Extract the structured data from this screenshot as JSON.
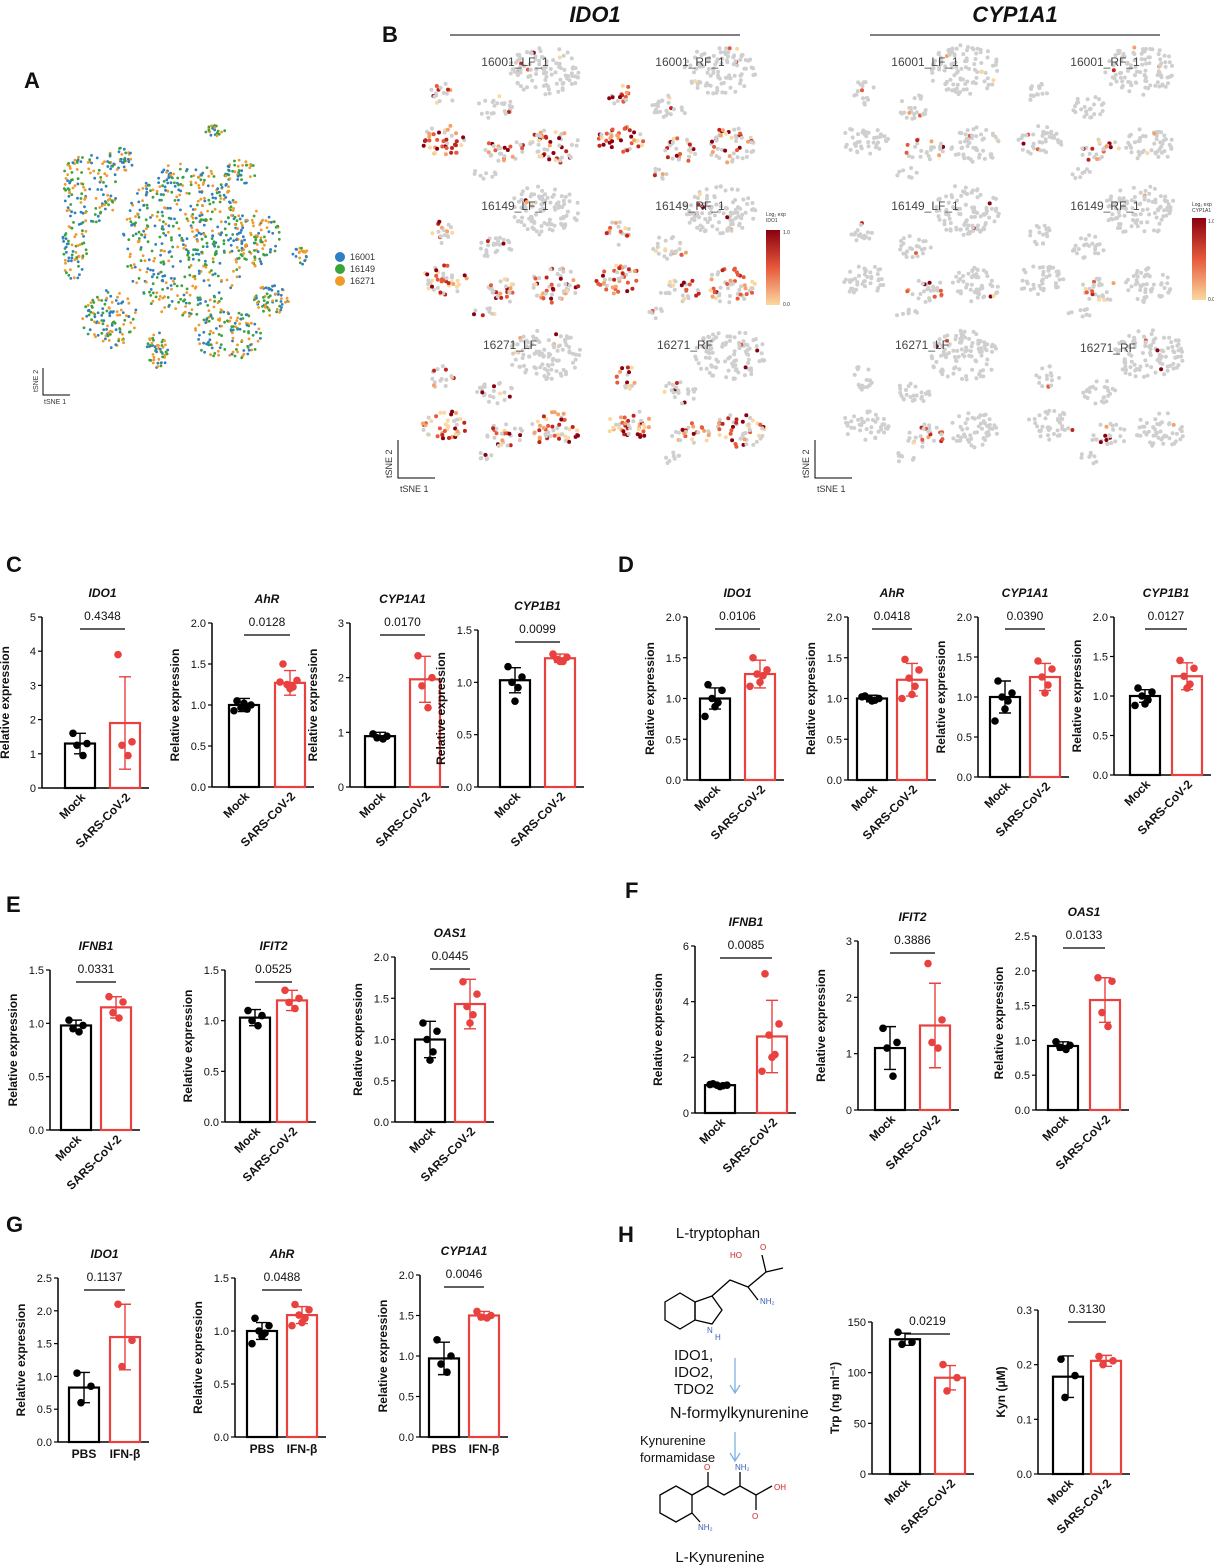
{
  "figure": {
    "letters": [
      "A",
      "B",
      "C",
      "D",
      "E",
      "F",
      "G",
      "H"
    ],
    "tsne": {
      "genes": [
        "IDO1",
        "CYP1A1"
      ],
      "samples": [
        "16001_LF_1",
        "16001_RF_1",
        "16149_LF_1",
        "16149_RF_1",
        "16271_LF",
        "16271_RF"
      ],
      "legend": [
        "16001",
        "16149",
        "16271"
      ],
      "legend_colors": [
        "#2f7fc1",
        "#3aa33a",
        "#f09a2a"
      ],
      "axis_x": "tSNE 1",
      "axis_y": "tSNE 2",
      "colorbar_ido1": [
        "Log₂ exp",
        "IDO1"
      ],
      "colorbar_cyp1a1": [
        "Log₂ exp",
        "CYP1A1"
      ],
      "colorbar_ticks": [
        "1.0",
        "0.0"
      ]
    },
    "pathway": {
      "substrate": "L-tryptophan",
      "enzymes1": [
        "IDO1,",
        "IDO2,",
        "TDO2"
      ],
      "intermediate": "N-formylkynurenine",
      "enzymes2": [
        "Kynurenine",
        "formamidase"
      ],
      "product": "L-Kynurenine",
      "atoms": [
        "HO",
        "O",
        "NH₂",
        "N",
        "H",
        "O",
        "NH₂",
        "OH",
        "O",
        "NH₂"
      ]
    }
  },
  "chart_data": [
    {
      "type": "bar",
      "title": "IDO1",
      "ylabel": "Relative expression",
      "categories": [
        "Mock",
        "SARS-CoV-2"
      ],
      "values": [
        1.3,
        1.9
      ],
      "errors": [
        0.3,
        1.35
      ],
      "points": [
        [
          1.6,
          1.3,
          1.25,
          0.95
        ],
        [
          3.9,
          1.35,
          1.25,
          0.95
        ]
      ],
      "ylim": [
        0,
        5
      ],
      "yticks": [
        0,
        1,
        2,
        3,
        4,
        5
      ],
      "annotation": "0.4348",
      "colors": [
        "#000000",
        "#e8413f"
      ]
    },
    {
      "type": "bar",
      "title": "AhR",
      "ylabel": "Relative expression",
      "categories": [
        "Mock",
        "SARS-CoV-2"
      ],
      "values": [
        1.0,
        1.27
      ],
      "errors": [
        0.08,
        0.15
      ],
      "points": [
        [
          1.05,
          1.0,
          0.97,
          0.95,
          1.02,
          0.93
        ],
        [
          1.5,
          1.3,
          1.25,
          1.22,
          1.2,
          1.28
        ]
      ],
      "ylim": [
        0,
        2
      ],
      "yticks": [
        {
          "value": 0,
          "label": "0.0"
        },
        0.5,
        {
          "value": 1,
          "label": "1.0"
        },
        1.5,
        {
          "value": 2,
          "label": "2.0"
        }
      ],
      "annotation": "0.0128",
      "colors": [
        "#000000",
        "#e8413f"
      ]
    },
    {
      "type": "bar",
      "title": "CYP1A1",
      "ylabel": "Relative expression",
      "categories": [
        "Mock",
        "SARS-CoV-2"
      ],
      "values": [
        0.93,
        1.97
      ],
      "errors": [
        0.07,
        0.42
      ],
      "points": [
        [
          0.97,
          0.93,
          0.9,
          0.88
        ],
        [
          2.4,
          2.0,
          1.85,
          1.45
        ]
      ],
      "ylim": [
        0,
        3
      ],
      "yticks": [
        0,
        1,
        2,
        3
      ],
      "annotation": "0.0170",
      "colors": [
        "#000000",
        "#e8413f"
      ]
    },
    {
      "type": "bar",
      "title": "CYP1B1",
      "ylabel": "Relative expression",
      "categories": [
        "Mock",
        "SARS-CoV-2"
      ],
      "values": [
        1.02,
        1.23
      ],
      "errors": [
        0.12,
        0.04
      ],
      "points": [
        [
          1.15,
          1.05,
          1.0,
          0.95,
          0.82
        ],
        [
          1.27,
          1.24,
          1.22,
          1.2,
          1.2
        ]
      ],
      "ylim": [
        0,
        1.5
      ],
      "yticks": [
        {
          "value": 0,
          "label": "0.0"
        },
        0.5,
        {
          "value": 1,
          "label": "1.0"
        },
        1.5
      ],
      "annotation": "0.0099",
      "colors": [
        "#000000",
        "#e8413f"
      ]
    },
    {
      "type": "bar",
      "title": "IDO1",
      "ylabel": "Relative expression",
      "categories": [
        "Mock",
        "SARS-CoV-2"
      ],
      "values": [
        1.0,
        1.3
      ],
      "errors": [
        0.13,
        0.17
      ],
      "points": [
        [
          1.17,
          1.1,
          1.0,
          0.95,
          0.9,
          0.78
        ],
        [
          1.5,
          1.35,
          1.3,
          1.28,
          1.2,
          1.15
        ]
      ],
      "ylim": [
        0,
        2
      ],
      "yticks": [
        {
          "value": 0,
          "label": "0.0"
        },
        0.5,
        {
          "value": 1,
          "label": "1.0"
        },
        1.5,
        {
          "value": 2,
          "label": "2.0"
        }
      ],
      "annotation": "0.0106",
      "colors": [
        "#000000",
        "#e8413f"
      ]
    },
    {
      "type": "bar",
      "title": "AhR",
      "ylabel": "Relative expression",
      "categories": [
        "Mock",
        "SARS-CoV-2"
      ],
      "values": [
        1.0,
        1.23
      ],
      "errors": [
        0.04,
        0.2
      ],
      "points": [
        [
          1.03,
          1.0,
          1.0,
          0.98,
          0.97,
          1.02
        ],
        [
          1.48,
          1.35,
          1.25,
          1.15,
          1.05,
          1.0
        ]
      ],
      "ylim": [
        0,
        2
      ],
      "yticks": [
        {
          "value": 0,
          "label": "0.0"
        },
        0.5,
        {
          "value": 1,
          "label": "1.0"
        },
        1.5,
        {
          "value": 2,
          "label": "2.0"
        }
      ],
      "annotation": "0.0418",
      "colors": [
        "#000000",
        "#e8413f"
      ]
    },
    {
      "type": "bar",
      "title": "CYP1A1",
      "ylabel": "Relative expression",
      "categories": [
        "Mock",
        "SARS-CoV-2"
      ],
      "values": [
        1.0,
        1.25
      ],
      "errors": [
        0.2,
        0.17
      ],
      "points": [
        [
          1.2,
          1.05,
          1.0,
          0.95,
          0.85,
          0.7
        ],
        [
          1.45,
          1.35,
          1.25,
          1.15,
          1.05
        ]
      ],
      "ylim": [
        0,
        2
      ],
      "yticks": [
        {
          "value": 0,
          "label": "0.0"
        },
        0.5,
        {
          "value": 1,
          "label": "1.0"
        },
        1.5,
        {
          "value": 2,
          "label": "2.0"
        }
      ],
      "annotation": "0.0390",
      "colors": [
        "#000000",
        "#e8413f"
      ]
    },
    {
      "type": "bar",
      "title": "CYP1B1",
      "ylabel": "Relative expression",
      "categories": [
        "Mock",
        "SARS-CoV-2"
      ],
      "values": [
        1.0,
        1.25
      ],
      "errors": [
        0.08,
        0.17
      ],
      "points": [
        [
          1.1,
          1.05,
          1.0,
          0.95,
          0.9,
          0.88
        ],
        [
          1.45,
          1.35,
          1.25,
          1.15,
          1.1
        ]
      ],
      "ylim": [
        0,
        2
      ],
      "yticks": [
        {
          "value": 0,
          "label": "0.0"
        },
        0.5,
        {
          "value": 1,
          "label": "1.0"
        },
        1.5,
        {
          "value": 2,
          "label": "2.0"
        }
      ],
      "annotation": "0.0127",
      "colors": [
        "#000000",
        "#e8413f"
      ]
    },
    {
      "type": "bar",
      "title": "IFNB1",
      "ylabel": "Relative expression",
      "categories": [
        "Mock",
        "SARS-CoV-2"
      ],
      "values": [
        0.98,
        1.15
      ],
      "errors": [
        0.05,
        0.1
      ],
      "points": [
        [
          1.03,
          0.98,
          0.95,
          0.92
        ],
        [
          1.25,
          1.2,
          1.1,
          1.05
        ]
      ],
      "ylim": [
        0,
        1.5
      ],
      "yticks": [
        {
          "value": 0,
          "label": "0.0"
        },
        0.5,
        {
          "value": 1,
          "label": "1.0"
        },
        1.5
      ],
      "annotation": "0.0331",
      "colors": [
        "#000000",
        "#e8413f"
      ]
    },
    {
      "type": "bar",
      "title": "IFIT2",
      "ylabel": "Relative expression",
      "categories": [
        "Mock",
        "SARS-CoV-2"
      ],
      "values": [
        1.03,
        1.2
      ],
      "errors": [
        0.08,
        0.1
      ],
      "points": [
        [
          1.1,
          1.05,
          1.0,
          0.95
        ],
        [
          1.3,
          1.22,
          1.18,
          1.12
        ]
      ],
      "ylim": [
        0,
        1.5
      ],
      "yticks": [
        {
          "value": 0,
          "label": "0.0"
        },
        0.5,
        {
          "value": 1,
          "label": "1.0"
        },
        1.5
      ],
      "annotation": "0.0525",
      "colors": [
        "#000000",
        "#e8413f"
      ]
    },
    {
      "type": "bar",
      "title": "OAS1",
      "ylabel": "Relative expression",
      "categories": [
        "Mock",
        "SARS-CoV-2"
      ],
      "values": [
        1.0,
        1.43
      ],
      "errors": [
        0.22,
        0.3
      ],
      "points": [
        [
          1.2,
          1.1,
          1.0,
          0.85,
          0.75
        ],
        [
          1.7,
          1.55,
          1.4,
          1.3,
          1.2
        ]
      ],
      "ylim": [
        0,
        2
      ],
      "yticks": [
        {
          "value": 0,
          "label": "0.0"
        },
        0.5,
        {
          "value": 1,
          "label": "1.0"
        },
        1.5,
        {
          "value": 2,
          "label": "2.0"
        }
      ],
      "annotation": "0.0445",
      "colors": [
        "#000000",
        "#e8413f"
      ]
    },
    {
      "type": "bar",
      "title": "IFNB1",
      "ylabel": "Relative expression",
      "categories": [
        "Mock",
        "SARS-CoV-2"
      ],
      "values": [
        1.0,
        2.75
      ],
      "errors": [
        0.05,
        1.3
      ],
      "points": [
        [
          1.05,
          1.0,
          1.0,
          0.98,
          0.95,
          1.02
        ],
        [
          5.0,
          3.2,
          2.8,
          2.1,
          2.0,
          1.5
        ]
      ],
      "ylim": [
        0,
        6
      ],
      "yticks": [
        0,
        2,
        4,
        6
      ],
      "annotation": "0.0085",
      "colors": [
        "#000000",
        "#e8413f"
      ]
    },
    {
      "type": "bar",
      "title": "IFIT2",
      "ylabel": "Relative expression",
      "categories": [
        "Mock",
        "SARS-CoV-2"
      ],
      "values": [
        1.1,
        1.5
      ],
      "errors": [
        0.38,
        0.75
      ],
      "points": [
        [
          1.45,
          1.2,
          1.1,
          0.6
        ],
        [
          2.6,
          1.6,
          1.2,
          1.1
        ]
      ],
      "ylim": [
        0,
        3
      ],
      "yticks": [
        0,
        1,
        2,
        3
      ],
      "annotation": "0.3886",
      "colors": [
        "#000000",
        "#e8413f"
      ]
    },
    {
      "type": "bar",
      "title": "OAS1",
      "ylabel": "Relative expression",
      "categories": [
        "Mock",
        "SARS-CoV-2"
      ],
      "values": [
        0.92,
        1.58
      ],
      "errors": [
        0.06,
        0.32
      ],
      "points": [
        [
          0.98,
          0.93,
          0.9,
          0.87
        ],
        [
          1.9,
          1.85,
          1.4,
          1.2
        ]
      ],
      "ylim": [
        0,
        2.5
      ],
      "yticks": [
        {
          "value": 0,
          "label": "0.0"
        },
        0.5,
        {
          "value": 1,
          "label": "1.0"
        },
        1.5,
        {
          "value": 2,
          "label": "2.0"
        },
        2.5
      ],
      "annotation": "0.0133",
      "colors": [
        "#000000",
        "#e8413f"
      ]
    },
    {
      "type": "bar",
      "title": "IDO1",
      "ylabel": "Relative expression",
      "categories": [
        "PBS",
        "IFN-β"
      ],
      "values": [
        0.83,
        1.6
      ],
      "errors": [
        0.23,
        0.5
      ],
      "points": [
        [
          1.05,
          0.85,
          0.6
        ],
        [
          2.1,
          1.55,
          1.15
        ]
      ],
      "ylim": [
        0,
        2.5
      ],
      "yticks": [
        {
          "value": 0,
          "label": "0.0"
        },
        0.5,
        {
          "value": 1,
          "label": "1.0"
        },
        1.5,
        {
          "value": 2,
          "label": "2.0"
        },
        2.5
      ],
      "annotation": "0.1137",
      "colors": [
        "#000000",
        "#e8413f"
      ]
    },
    {
      "type": "bar",
      "title": "AhR",
      "ylabel": "Relative expression",
      "categories": [
        "PBS",
        "IFN-β"
      ],
      "values": [
        1.0,
        1.15
      ],
      "errors": [
        0.08,
        0.08
      ],
      "points": [
        [
          1.12,
          1.05,
          1.0,
          0.98,
          0.95,
          0.88
        ],
        [
          1.25,
          1.2,
          1.15,
          1.12,
          1.08,
          1.05
        ]
      ],
      "ylim": [
        0,
        1.5
      ],
      "yticks": [
        {
          "value": 0,
          "label": "0.0"
        },
        0.5,
        {
          "value": 1,
          "label": "1.0"
        },
        1.5
      ],
      "annotation": "0.0488",
      "colors": [
        "#000000",
        "#e8413f"
      ]
    },
    {
      "type": "bar",
      "title": "CYP1A1",
      "ylabel": "Relative expression",
      "categories": [
        "PBS",
        "IFN-β"
      ],
      "values": [
        0.97,
        1.5
      ],
      "errors": [
        0.2,
        0.05
      ],
      "points": [
        [
          1.2,
          1.0,
          0.9,
          0.8
        ],
        [
          1.55,
          1.5,
          1.48,
          1.47
        ]
      ],
      "ylim": [
        0,
        2
      ],
      "yticks": [
        {
          "value": 0,
          "label": "0.0"
        },
        0.5,
        {
          "value": 1,
          "label": "1.0"
        },
        1.5,
        {
          "value": 2,
          "label": "2.0"
        }
      ],
      "annotation": "0.0046",
      "colors": [
        "#000000",
        "#e8413f"
      ]
    },
    {
      "type": "bar",
      "title": null,
      "ylabel": "Trp (ng ml⁻¹)",
      "categories": [
        "Mock",
        "SARS-CoV-2"
      ],
      "values": [
        133,
        95
      ],
      "errors": [
        6,
        12
      ],
      "points": [
        [
          140,
          130,
          128
        ],
        [
          108,
          95,
          82
        ]
      ],
      "ylim": [
        0,
        150
      ],
      "yticks": [
        0,
        50,
        100,
        150
      ],
      "annotation": "0.0219",
      "colors": [
        "#000000",
        "#e8413f"
      ]
    },
    {
      "type": "bar",
      "title": null,
      "ylabel": "Kyn (μM)",
      "categories": [
        "Mock",
        "SARS-CoV-2"
      ],
      "values": [
        0.178,
        0.207
      ],
      "errors": [
        0.038,
        0.01
      ],
      "points": [
        [
          0.21,
          0.18,
          0.14
        ],
        [
          0.215,
          0.207,
          0.2
        ]
      ],
      "ylim": [
        0,
        0.3
      ],
      "yticks": [
        {
          "value": 0,
          "label": "0.0"
        },
        0.1,
        0.2,
        0.3
      ],
      "annotation": "0.3130",
      "colors": [
        "#000000",
        "#e8413f"
      ]
    }
  ]
}
